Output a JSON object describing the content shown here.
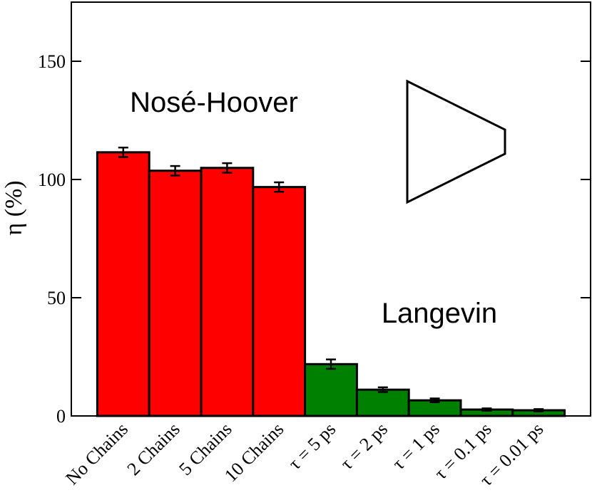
{
  "chart_data": {
    "type": "bar",
    "y_label": "η (%)",
    "categories": [
      "No Chains",
      "2 Chains",
      "5 Chains",
      "10 Chains",
      "τ = 5 ps",
      "τ = 2 ps",
      "τ = 1 ps",
      "τ = 0.1 ps",
      "τ = 0.01 ps"
    ],
    "values": [
      111.5,
      103.7,
      104.9,
      96.8,
      21.9,
      11.1,
      6.6,
      2.7,
      2.4
    ],
    "errors": [
      2.0,
      2.0,
      2.0,
      2.0,
      2.0,
      1.0,
      0.8,
      0.5,
      0.5
    ],
    "colors": [
      "#ff0000",
      "#ff0000",
      "#ff0000",
      "#ff0000",
      "#008000",
      "#008000",
      "#008000",
      "#008000",
      "#008000"
    ],
    "ylim": [
      0,
      175
    ],
    "yticks": [
      0,
      50,
      100,
      150
    ],
    "annotations": [
      {
        "text": "Nosé-Hoover",
        "color": "#ff0000"
      },
      {
        "text": "Langevin",
        "color": "#008000"
      }
    ]
  }
}
